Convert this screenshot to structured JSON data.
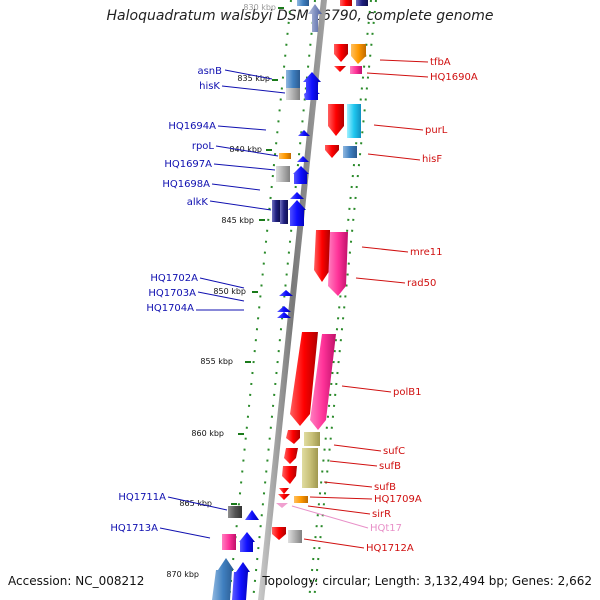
{
  "title": "Haloquadratum walsbyi DSM 16790, complete genome",
  "footer": {
    "accession": "Accession: NC_008212",
    "topology": "Topology: circular; Length: 3,132,494 bp; Genes: 2,662"
  },
  "colors": {
    "backbone": "#8a8a8a",
    "tick": "#1a7a1a",
    "plus_label": "#1010b0",
    "minus_label": "#d01010",
    "rna_label": "#e890c8"
  },
  "kbp_marks": [
    "830 kbp",
    "835 kbp",
    "840 kbp",
    "845 kbp",
    "850 kbp",
    "855 kbp",
    "860 kbp",
    "865 kbp",
    "870 kbp"
  ],
  "plus_genes": [
    {
      "label": "asnB"
    },
    {
      "label": "hisK"
    },
    {
      "label": "HQ1694A"
    },
    {
      "label": "rpoL"
    },
    {
      "label": "HQ1697A"
    },
    {
      "label": "HQ1698A"
    },
    {
      "label": "alkK"
    },
    {
      "label": "HQ1702A"
    },
    {
      "label": "HQ1703A"
    },
    {
      "label": "HQ1704A"
    },
    {
      "label": "HQ1711A"
    },
    {
      "label": "HQ1713A"
    }
  ],
  "minus_genes": [
    {
      "label": "tfbA"
    },
    {
      "label": "HQ1690A"
    },
    {
      "label": "purL"
    },
    {
      "label": "hisF"
    },
    {
      "label": "mre11"
    },
    {
      "label": "rad50"
    },
    {
      "label": "polB1"
    },
    {
      "label": "sufC"
    },
    {
      "label": "sufB"
    },
    {
      "label": "sufB"
    },
    {
      "label": "HQ1709A"
    },
    {
      "label": "sirR"
    },
    {
      "label": "HQt17"
    },
    {
      "label": "HQ1712A"
    }
  ]
}
